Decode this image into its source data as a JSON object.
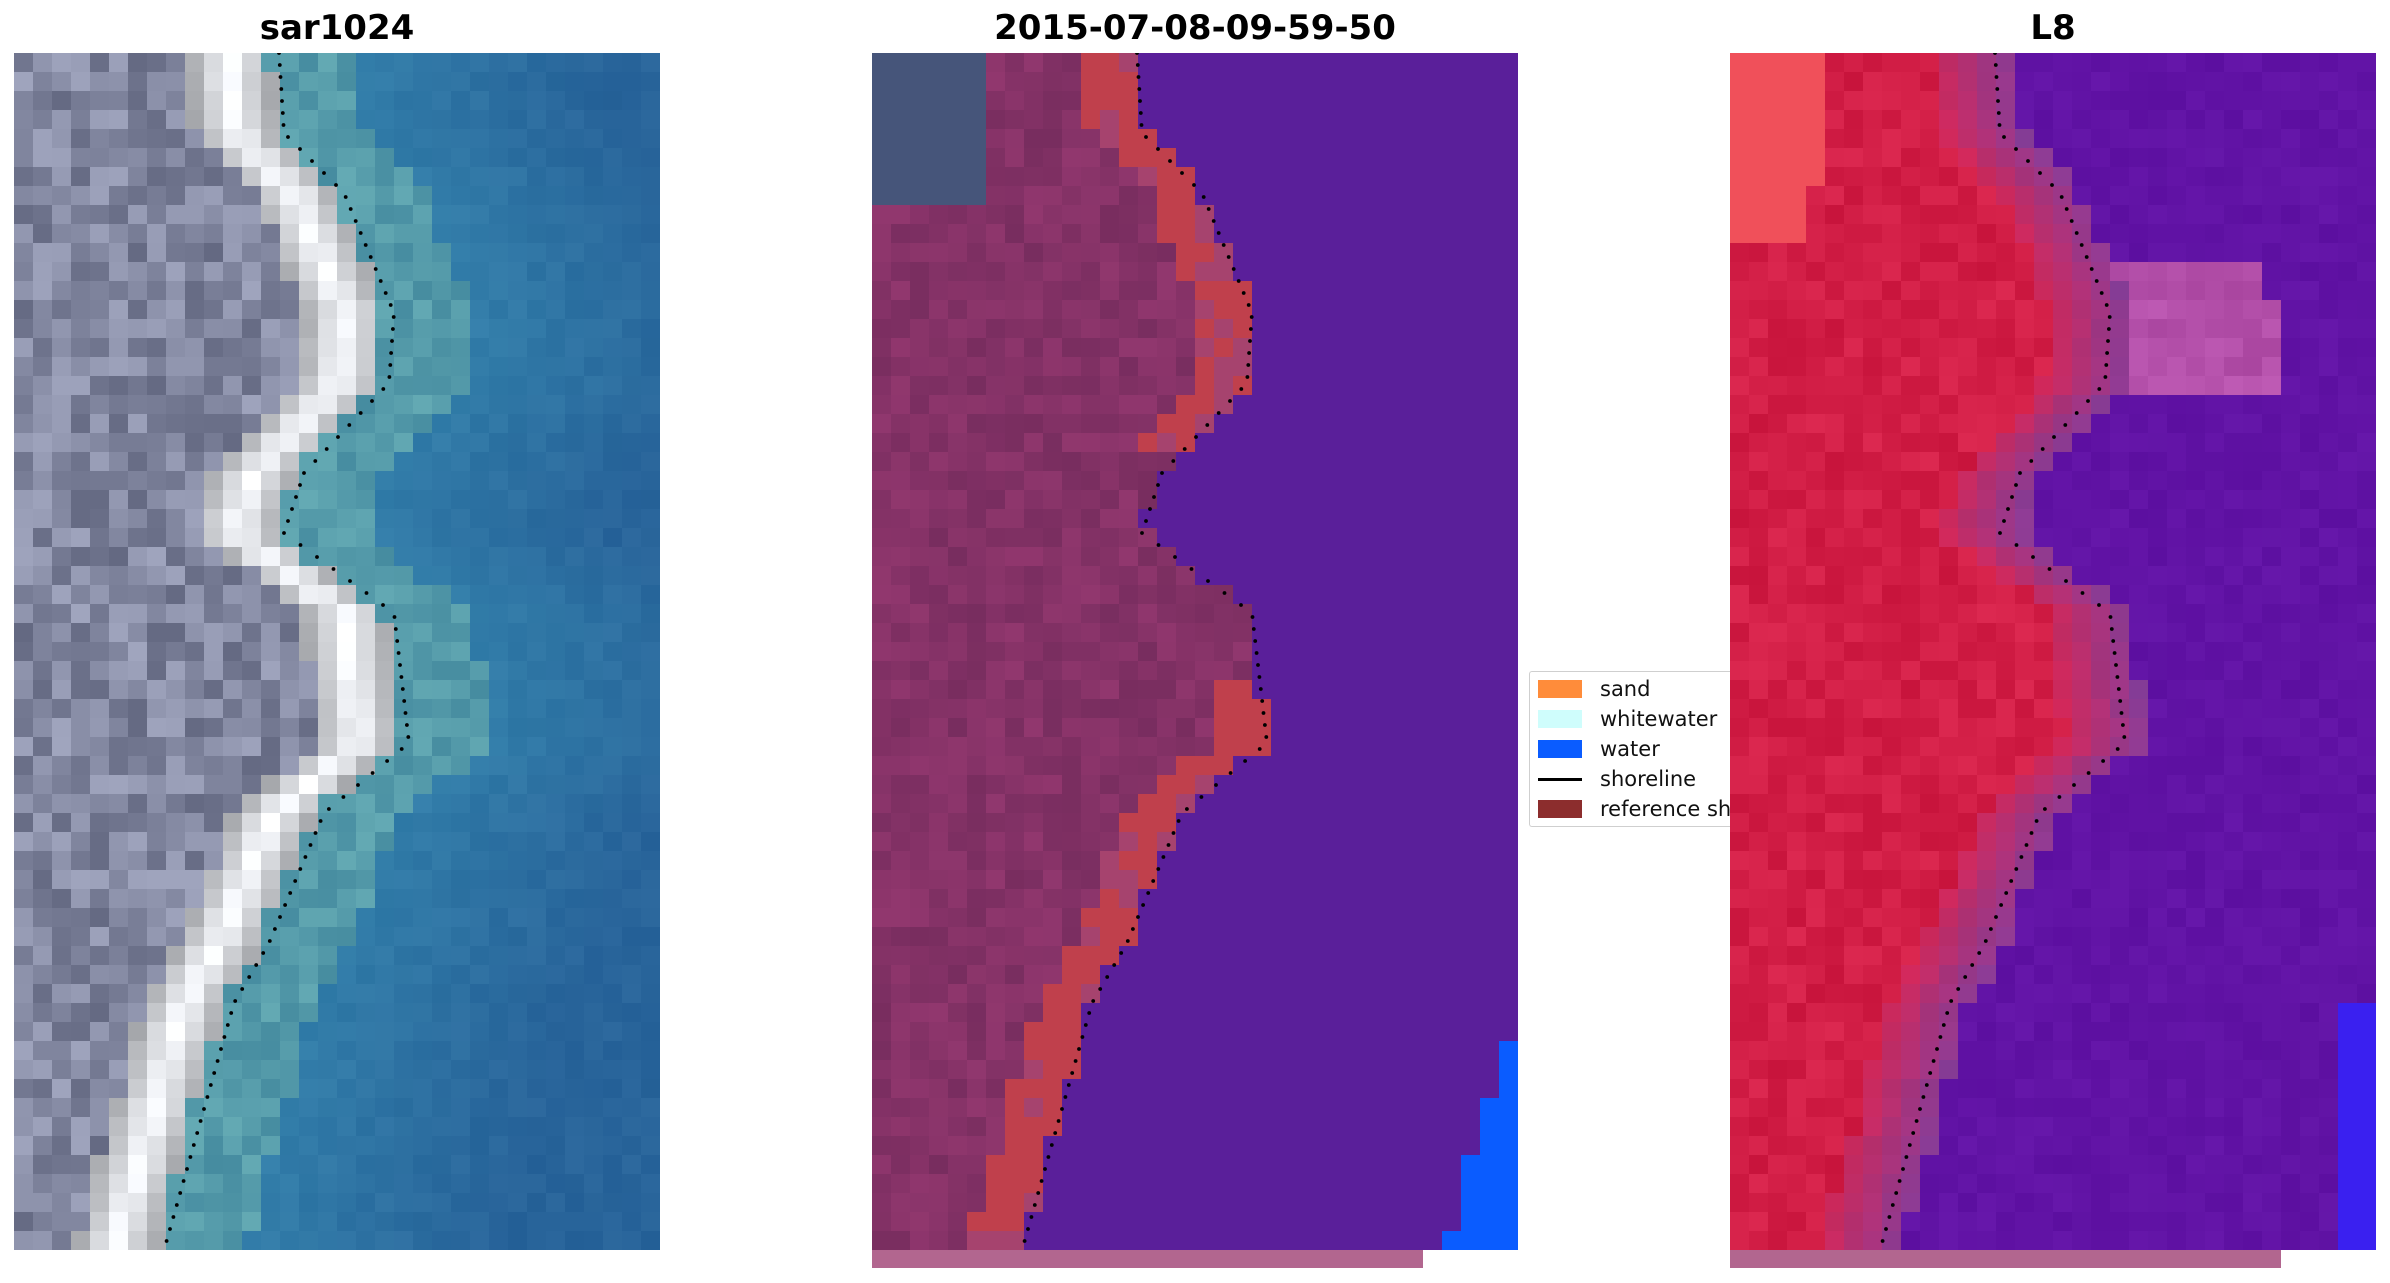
{
  "panels": [
    {
      "title": "sar1024",
      "kind": "rgb"
    },
    {
      "title": "2015-07-08-09-59-50",
      "kind": "classified"
    },
    {
      "title": "L8",
      "kind": "mndwi"
    }
  ],
  "legend": {
    "items": [
      {
        "label": "sand",
        "color": "#ff8c3a",
        "type": "patch"
      },
      {
        "label": "whitewater",
        "color": "#cffdfc",
        "type": "patch"
      },
      {
        "label": "water",
        "color": "#0a5cff",
        "type": "patch"
      },
      {
        "label": "shoreline",
        "color": "#000000",
        "type": "line"
      },
      {
        "label": "reference shoreline",
        "color": "#8c2d2d",
        "type": "patch"
      }
    ]
  },
  "colors": {
    "land_overlay": "#7b2d62",
    "water_overlay": "#5a1f9a",
    "sand_class": "#c0404c",
    "water_class": "#0a5cff",
    "shoreline_dots": "#000000",
    "underbar": "#b2668f"
  }
}
